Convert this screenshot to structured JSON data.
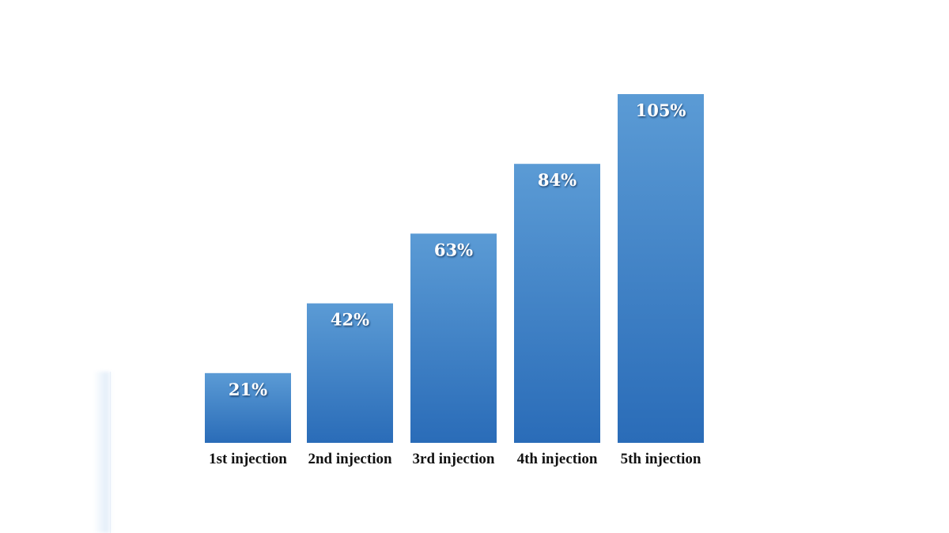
{
  "chart_data": {
    "type": "bar",
    "categories": [
      "1st injection",
      "2nd injection",
      "3rd injection",
      "4th injection",
      "5th injection"
    ],
    "values": [
      21,
      42,
      63,
      84,
      105
    ],
    "value_labels": [
      "21%",
      "42%",
      "63%",
      "84%",
      "105%"
    ],
    "title": "",
    "xlabel": "",
    "ylabel": "",
    "ylim": [
      0,
      105
    ],
    "grid": false,
    "legend": "none",
    "colors": {
      "bar_top": "#5b9bd5",
      "bar_bottom": "#2a6cb8",
      "label_text": "#ffffff",
      "category_text": "#111111"
    }
  }
}
